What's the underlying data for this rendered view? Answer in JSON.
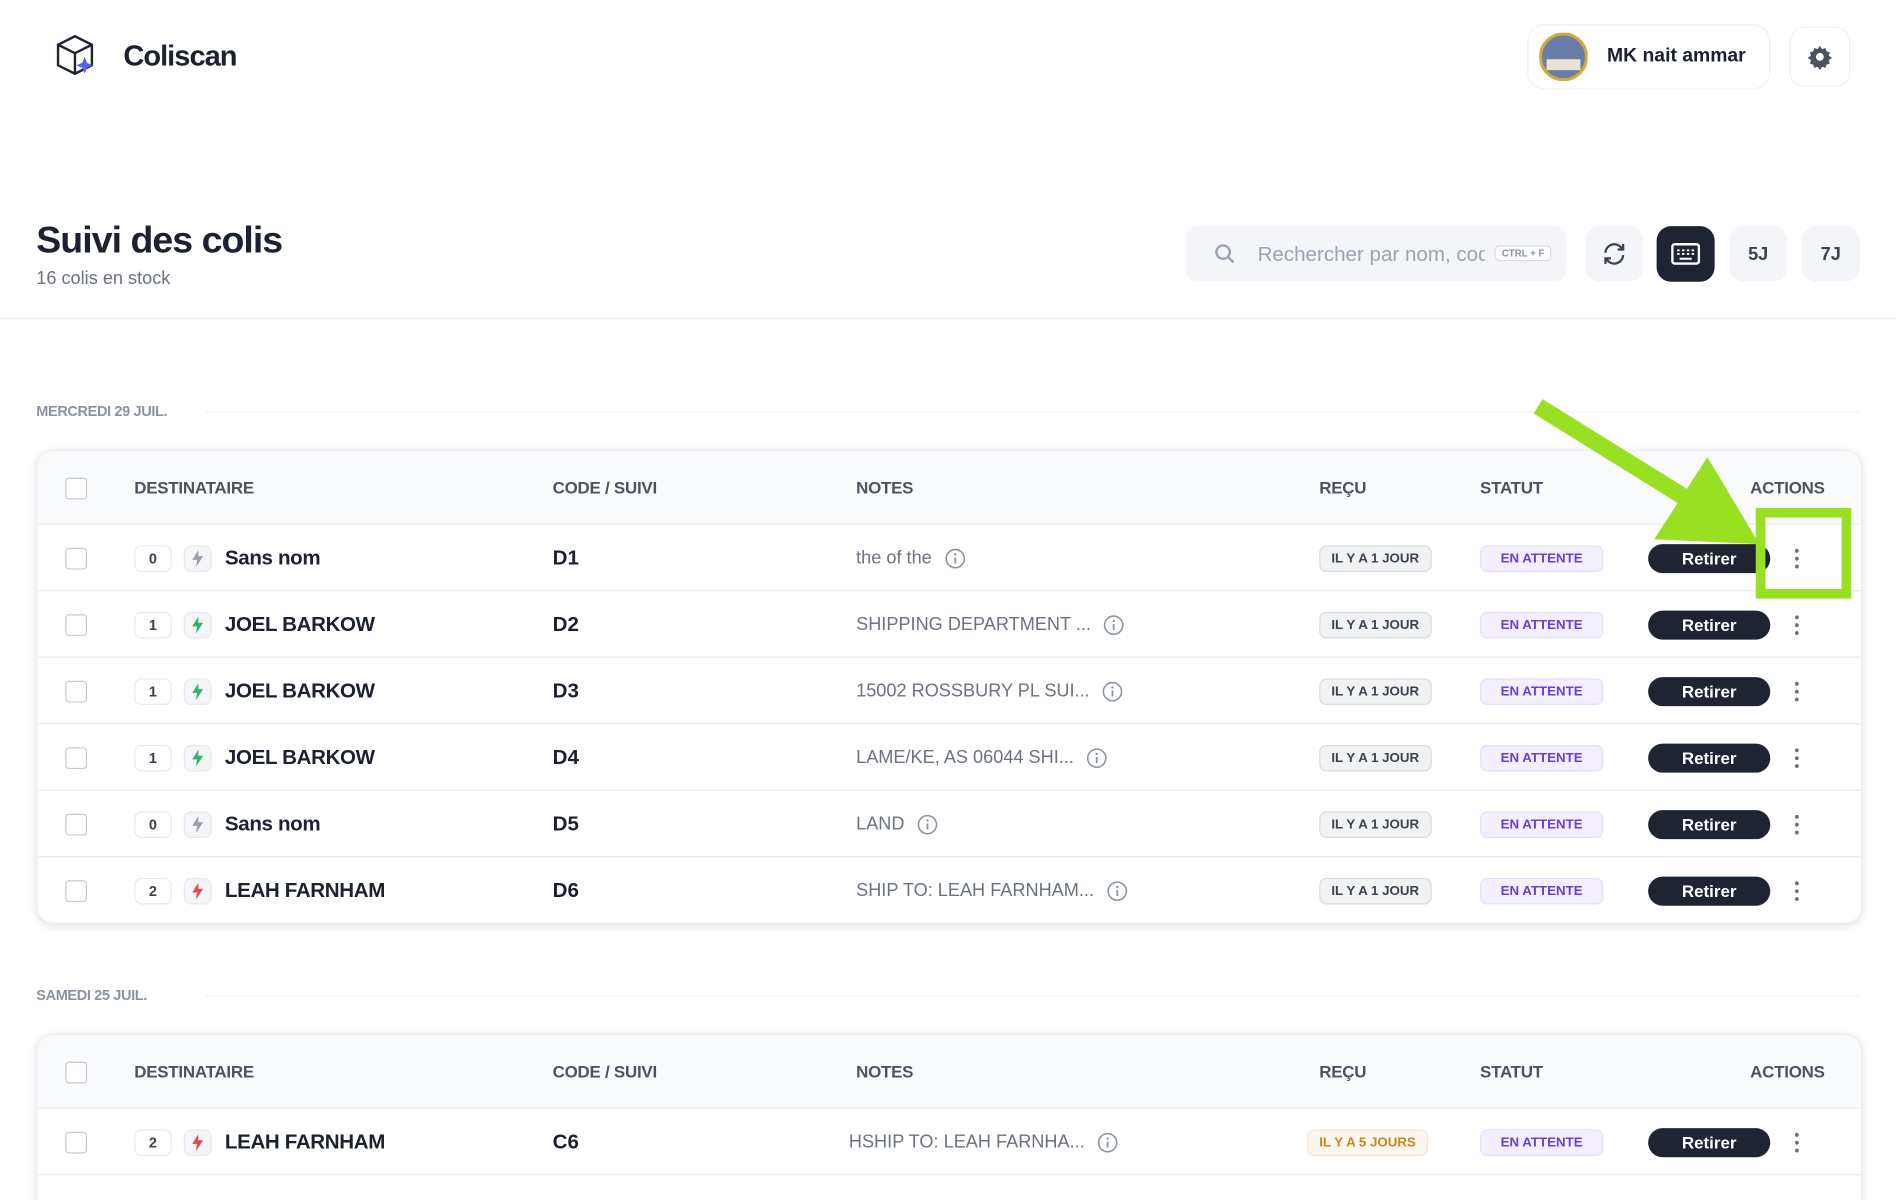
{
  "header": {
    "brand": "Coliscan",
    "user": "MK nait ammar"
  },
  "page": {
    "title": "Suivi des colis",
    "subtitle": "16 colis en stock",
    "search_placeholder": "Rechercher par nom, code",
    "shortcut": "CTRL + F",
    "range_buttons": [
      "5J",
      "7J"
    ]
  },
  "groups": [
    {
      "date": "MERCREDI 29 JUIL.",
      "columns": [
        "DESTINATAIRE",
        "CODE / SUIVI",
        "NOTES",
        "REÇU",
        "STATUT",
        "ACTIONS"
      ],
      "rows": [
        {
          "count": "0",
          "icon_color": "#9aa1ad",
          "name": "Sans nom",
          "code": "D1",
          "note": "the of the",
          "received": "IL Y A 1 JOUR",
          "received_color": "#3b4252",
          "status": "EN ATTENTE",
          "action": "Retirer"
        },
        {
          "count": "1",
          "icon_color": "#2fb36b",
          "name": "JOEL BARKOW",
          "code": "D2",
          "note": "SHIPPING DEPARTMENT ...",
          "received": "IL Y A 1 JOUR",
          "received_color": "#3b4252",
          "status": "EN ATTENTE",
          "action": "Retirer"
        },
        {
          "count": "1",
          "icon_color": "#2fb36b",
          "name": "JOEL BARKOW",
          "code": "D3",
          "note": "15002 ROSSBURY PL SUI...",
          "received": "IL Y A 1 JOUR",
          "received_color": "#3b4252",
          "status": "EN ATTENTE",
          "action": "Retirer"
        },
        {
          "count": "1",
          "icon_color": "#2fb36b",
          "name": "JOEL BARKOW",
          "code": "D4",
          "note": "LAME/KE, AS 06044 SHI...",
          "received": "IL Y A 1 JOUR",
          "received_color": "#3b4252",
          "status": "EN ATTENTE",
          "action": "Retirer"
        },
        {
          "count": "0",
          "icon_color": "#9aa1ad",
          "name": "Sans nom",
          "code": "D5",
          "note": "LAND",
          "received": "IL Y A 1 JOUR",
          "received_color": "#3b4252",
          "status": "EN ATTENTE",
          "action": "Retirer"
        },
        {
          "count": "2",
          "icon_color": "#e5484d",
          "name": "LEAH FARNHAM",
          "code": "D6",
          "note": "SHIP TO: LEAH FARNHAM...",
          "received": "IL Y A 1 JOUR",
          "received_color": "#3b4252",
          "status": "EN ATTENTE",
          "action": "Retirer"
        }
      ]
    },
    {
      "date": "SAMEDI 25 JUIL.",
      "columns": [
        "DESTINATAIRE",
        "CODE / SUIVI",
        "NOTES",
        "REÇU",
        "STATUT",
        "ACTIONS"
      ],
      "rows": [
        {
          "count": "2",
          "icon_color": "#e5484d",
          "name": "LEAH FARNHAM",
          "code": "C6",
          "note": "HSHIP TO: LEAH FARNHA...",
          "received": "IL Y A 5 JOURS",
          "received_color": "#c9861a",
          "status": "EN ATTENTE",
          "action": "Retirer"
        }
      ]
    }
  ]
}
